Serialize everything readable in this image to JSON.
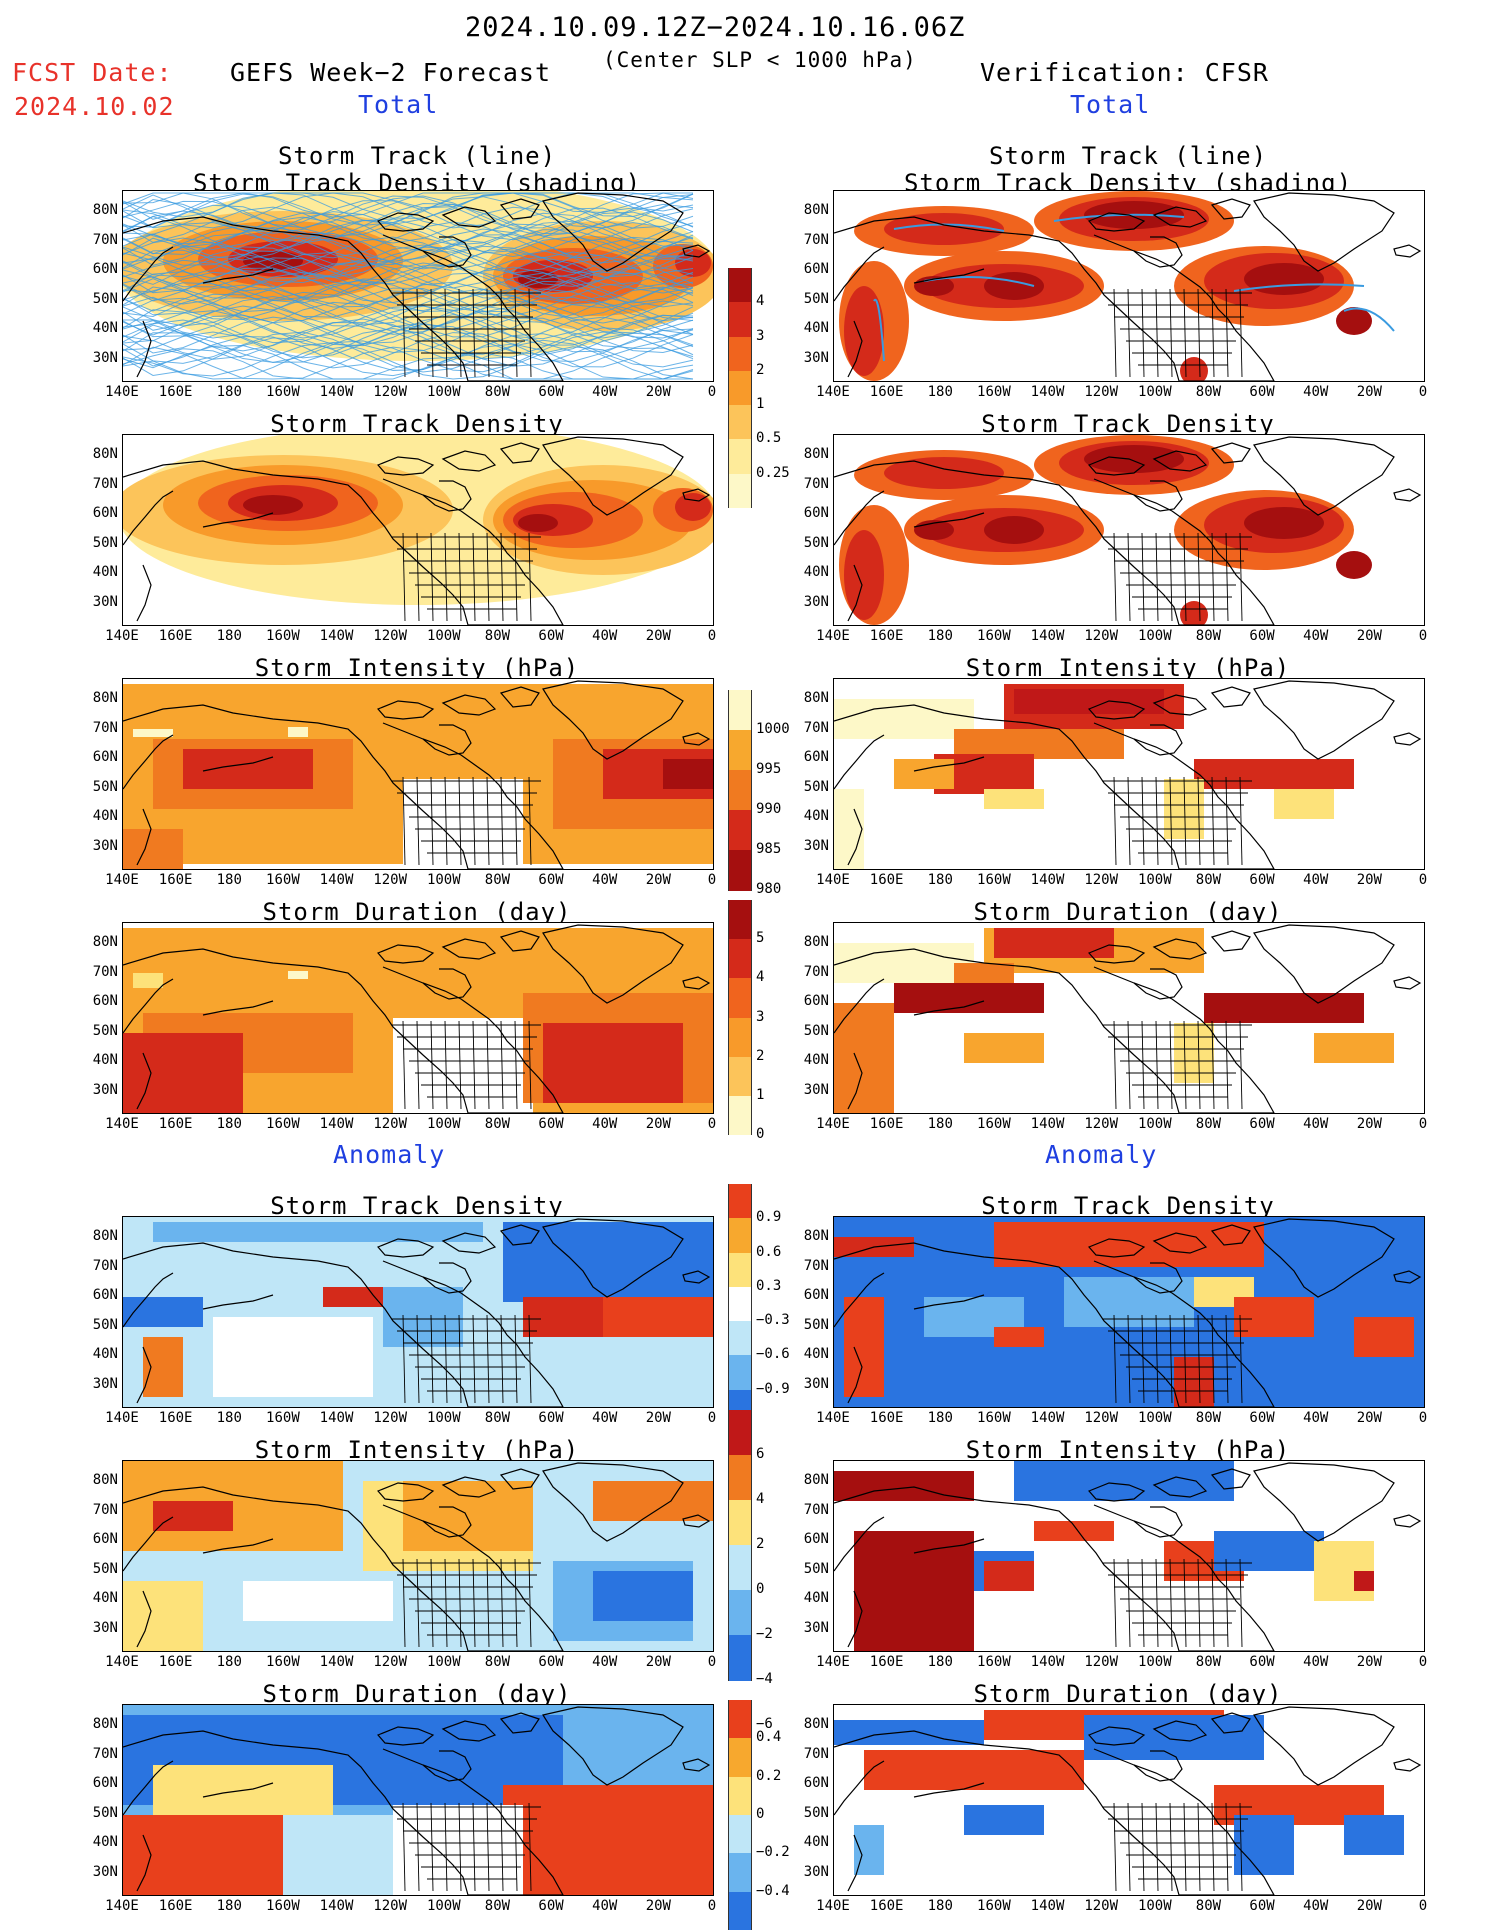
{
  "header": {
    "period": "2024.10.09.12Z−2024.10.16.06Z",
    "criterion": "(Center SLP < 1000 hPa)",
    "fcst_label": "FCST Date:",
    "fcst_date": "2024.10.02",
    "left_model": "GEFS Week−2 Forecast",
    "right_model": "Verification: CFSR",
    "total_label": "Total",
    "anomaly_label": "Anomaly"
  },
  "panel_titles": {
    "track_line": "Storm Track (line)",
    "track_density_shading": "Storm Track Density (shading)",
    "density": "Storm Track Density",
    "intensity": "Storm Intensity (hPa)",
    "duration": "Storm Duration (day)"
  },
  "lat_labels": [
    "80N",
    "70N",
    "60N",
    "50N",
    "40N",
    "30N"
  ],
  "lon_labels": [
    "140E",
    "160E",
    "180",
    "160W",
    "140W",
    "120W",
    "100W",
    "80W",
    "60W",
    "40W",
    "20W",
    "0"
  ],
  "colorbars": {
    "total_density": {
      "labels": [
        "4",
        "3",
        "2",
        "1",
        "0.5",
        "0.25"
      ],
      "colors": [
        "#a50f0f",
        "#d42a1a",
        "#f0641e",
        "#f89a2a",
        "#fcc45a",
        "#feeb9a",
        "#fdf8c8"
      ]
    },
    "total_intensity": {
      "labels": [
        "1000",
        "995",
        "990",
        "985",
        "980"
      ],
      "colors": [
        "#fdf8c8",
        "#f7a82e",
        "#f07a20",
        "#d42a1a",
        "#a50f0f"
      ]
    },
    "total_duration": {
      "labels": [
        "5",
        "4",
        "3",
        "2",
        "1",
        "0"
      ],
      "colors": [
        "#a50f0f",
        "#d42a1a",
        "#f0641e",
        "#f89a2a",
        "#fcc45a",
        "#fdf8c8"
      ]
    },
    "anom_density": {
      "labels": [
        "0.9",
        "0.6",
        "0.3",
        "−0.3",
        "−0.6",
        "−0.9"
      ],
      "colors": [
        "#e8401c",
        "#f7a82e",
        "#fde27a",
        "#ffffff",
        "#bfe6f7",
        "#6ab4ee",
        "#2a74e0"
      ]
    },
    "anom_intensity": {
      "labels": [
        "6",
        "4",
        "2",
        "0",
        "−2",
        "−4",
        "−6"
      ],
      "colors": [
        "#c01818",
        "#f07a20",
        "#fde27a",
        "#bfe6f7",
        "#6ab4ee",
        "#2a74e0"
      ]
    },
    "anom_duration": {
      "labels": [
        "0.4",
        "0.2",
        "0",
        "−0.2",
        "−0.4"
      ],
      "colors": [
        "#e8401c",
        "#f7a82e",
        "#fde27a",
        "#bfe6f7",
        "#6ab4ee",
        "#2a74e0"
      ]
    }
  },
  "colors": {
    "red_text": "#e8322a",
    "blue_text": "#1f3fe0",
    "track_line": "#3a9be0",
    "land_outline": "#000000"
  }
}
